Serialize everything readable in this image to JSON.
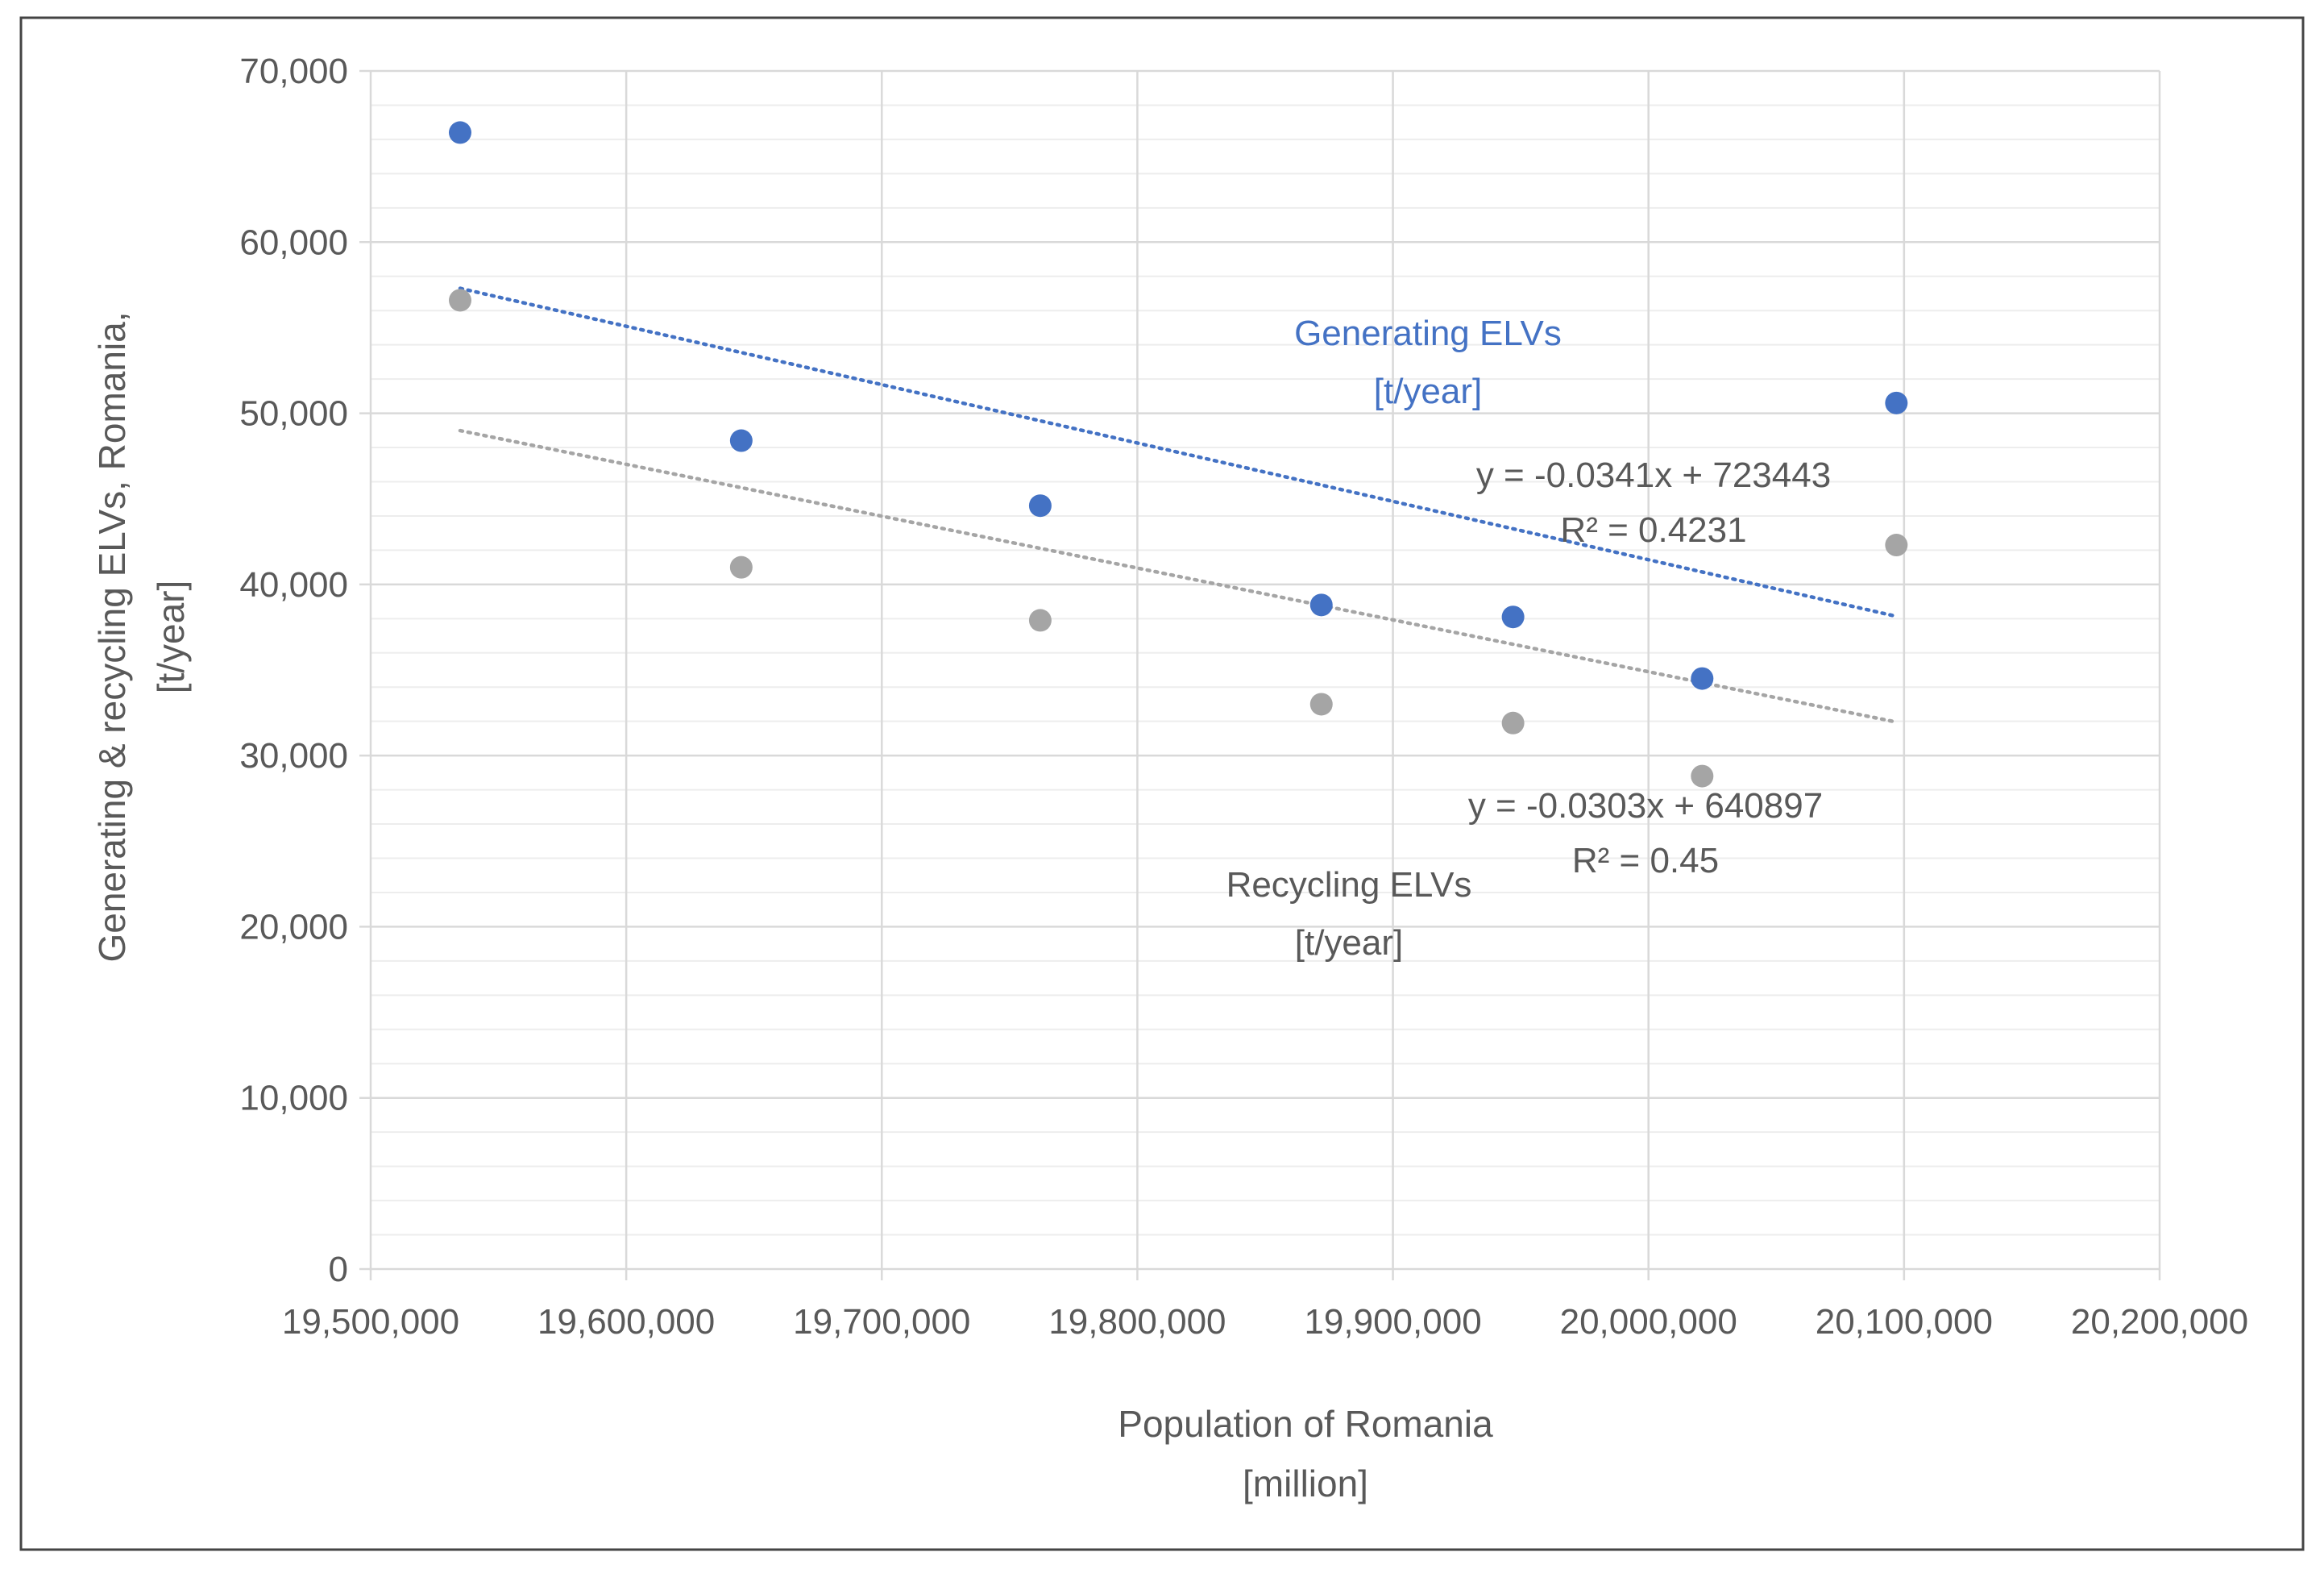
{
  "chart_data": {
    "type": "scatter",
    "title": "",
    "xlabel_lines": [
      "Population of Romania",
      "[million]"
    ],
    "ylabel_lines": [
      "Generating & recycling ELVs, Romania,",
      "[t/year]"
    ],
    "xlim": [
      19500000,
      20200000
    ],
    "ylim": [
      0,
      70000
    ],
    "x_ticks": [
      19500000,
      19600000,
      19700000,
      19800000,
      19900000,
      20000000,
      20100000,
      20200000
    ],
    "x_tick_labels": [
      "19,500,000",
      "19,600,000",
      "19,700,000",
      "19,800,000",
      "19,900,000",
      "20,000,000",
      "20,100,000",
      "20,200,000"
    ],
    "y_ticks": [
      0,
      10000,
      20000,
      30000,
      40000,
      50000,
      60000,
      70000
    ],
    "y_tick_labels": [
      "0",
      "10,000",
      "20,000",
      "30,000",
      "40,000",
      "50,000",
      "60,000",
      "70,000"
    ],
    "grid": true,
    "series": [
      {
        "name": "Generating ELVs",
        "unit": "[t/year]",
        "color": "#4472C4",
        "x": [
          19535000,
          19645000,
          19762000,
          19872000,
          19947000,
          20021000,
          20097000
        ],
        "y": [
          66400,
          48400,
          44600,
          38800,
          38100,
          34500,
          50600
        ],
        "trendline": {
          "slope": -0.0341,
          "intercept": 723443,
          "x_range": [
            19535000,
            20097000
          ],
          "equation": "y = -0.0341x + 723443",
          "r2": "R² = 0.4231"
        }
      },
      {
        "name": "Recycling ELVs",
        "unit": "[t/year]",
        "color": "#A5A5A5",
        "x": [
          19535000,
          19645000,
          19762000,
          19872000,
          19947000,
          20021000,
          20097000
        ],
        "y": [
          56600,
          41000,
          37900,
          33000,
          31900,
          28800,
          42300
        ],
        "trendline": {
          "slope": -0.0303,
          "intercept": 640897,
          "x_range": [
            19535000,
            20097000
          ],
          "equation": "y = -0.0303x + 640897",
          "r2": "R² = 0.45"
        }
      }
    ]
  },
  "colors": {
    "frame": "#444444",
    "grid_major": "#D9D9D9",
    "grid_minor": "#EDEDED",
    "axis_text": "#595959",
    "generating_label": "#4472C4"
  }
}
